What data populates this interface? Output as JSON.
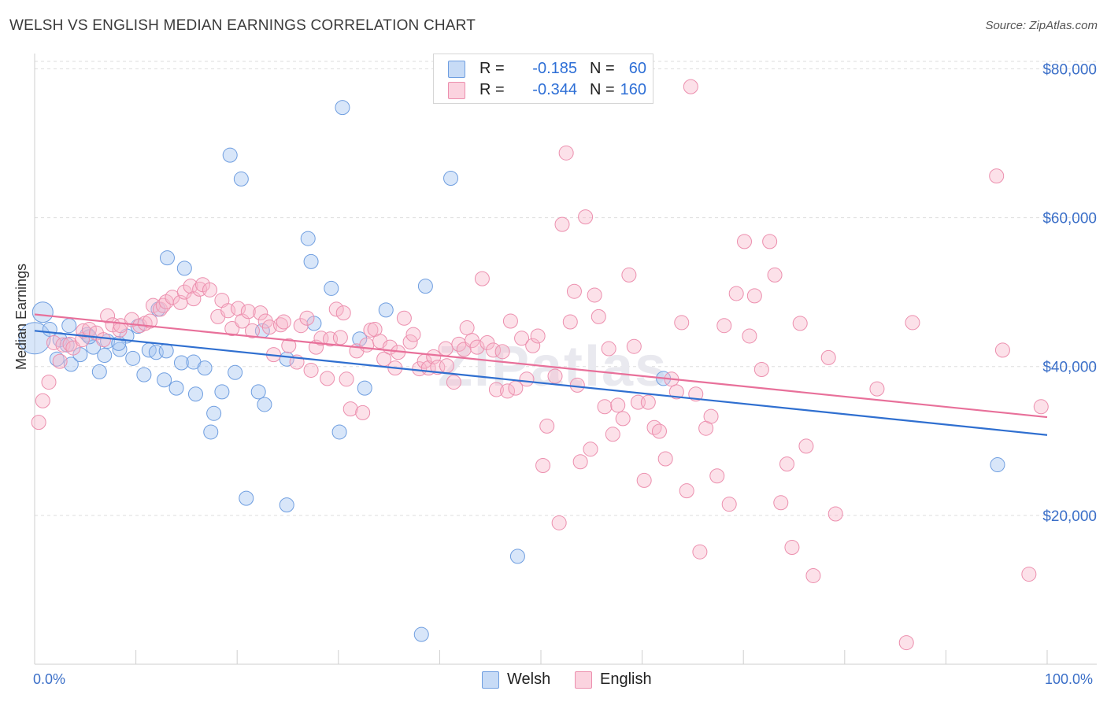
{
  "header": {
    "title": "WELSH VS ENGLISH MEDIAN EARNINGS CORRELATION CHART",
    "source": "Source: ZipAtlas.com"
  },
  "watermark": "ZIPatlas",
  "legend_top": {
    "rows": [
      {
        "r_label": "R =",
        "r_value": "-0.185",
        "n_label": "N =",
        "n_value": "60",
        "color": "#a9c8f2"
      },
      {
        "r_label": "R =",
        "r_value": "-0.344",
        "n_label": "N =",
        "n_value": "160",
        "color": "#f7b8cb"
      }
    ]
  },
  "legend_bottom": {
    "items": [
      {
        "label": "Welsh",
        "color": "#a9c8f2"
      },
      {
        "label": "English",
        "color": "#f7b8cb"
      }
    ]
  },
  "chart_data": {
    "type": "scatter",
    "title": "WELSH VS ENGLISH MEDIAN EARNINGS CORRELATION CHART",
    "xlabel": "",
    "ylabel": "Median Earnings",
    "x_tick_labels": [
      "0.0%",
      "100.0%"
    ],
    "y_tick_labels": [
      "$20,000",
      "$40,000",
      "$60,000",
      "$80,000"
    ],
    "y_ticks": [
      20000,
      40000,
      60000,
      80000
    ],
    "xlim": [
      0,
      100
    ],
    "ylim": [
      0,
      81000
    ],
    "grid": true,
    "legend_position": "top-center",
    "colors": {
      "welsh_fill": "#a9c8f2",
      "welsh_line": "#2f6fd0",
      "english_fill": "#f7b8cb",
      "english_line": "#e8709a",
      "axis_text": "#3b6fc8"
    },
    "trendlines": [
      {
        "series": "Welsh",
        "x": [
          0,
          100
        ],
        "y": [
          44800,
          30800
        ]
      },
      {
        "series": "English",
        "x": [
          0,
          100
        ],
        "y": [
          47000,
          33200
        ]
      }
    ],
    "series": [
      {
        "name": "Welsh",
        "points": [
          [
            0.0,
            43800
          ],
          [
            0.8,
            47300
          ],
          [
            1.5,
            45000
          ],
          [
            2.2,
            41000
          ],
          [
            2.5,
            43600
          ],
          [
            3.2,
            42900
          ],
          [
            3.4,
            45500
          ],
          [
            3.6,
            40300
          ],
          [
            4.5,
            41600
          ],
          [
            5.2,
            44300
          ],
          [
            5.8,
            42600
          ],
          [
            6.4,
            39300
          ],
          [
            6.9,
            41500
          ],
          [
            7.2,
            43400
          ],
          [
            8.4,
            42300
          ],
          [
            9.1,
            44100
          ],
          [
            9.7,
            41100
          ],
          [
            10.2,
            45400
          ],
          [
            10.8,
            38900
          ],
          [
            11.3,
            42200
          ],
          [
            12.0,
            41900
          ],
          [
            12.8,
            38200
          ],
          [
            13.1,
            54600
          ],
          [
            14.0,
            37100
          ],
          [
            14.5,
            40500
          ],
          [
            14.8,
            53200
          ],
          [
            15.7,
            40600
          ],
          [
            15.9,
            36300
          ],
          [
            16.8,
            39800
          ],
          [
            17.4,
            31200
          ],
          [
            17.7,
            33700
          ],
          [
            18.5,
            36600
          ],
          [
            19.3,
            68400
          ],
          [
            19.8,
            39200
          ],
          [
            20.4,
            65200
          ],
          [
            20.9,
            22300
          ],
          [
            22.1,
            36600
          ],
          [
            22.7,
            34900
          ],
          [
            24.9,
            41000
          ],
          [
            24.9,
            21400
          ],
          [
            27.0,
            57200
          ],
          [
            27.3,
            54100
          ],
          [
            27.6,
            45800
          ],
          [
            29.3,
            50500
          ],
          [
            30.1,
            31200
          ],
          [
            30.4,
            74800
          ],
          [
            32.1,
            43700
          ],
          [
            32.6,
            37100
          ],
          [
            34.7,
            47600
          ],
          [
            38.2,
            4000
          ],
          [
            38.6,
            50800
          ],
          [
            41.1,
            65300
          ],
          [
            47.7,
            14500
          ],
          [
            62.1,
            38400
          ],
          [
            95.1,
            26800
          ],
          [
            8.3,
            43100
          ],
          [
            13.0,
            42100
          ],
          [
            12.2,
            47700
          ],
          [
            5.4,
            44000
          ],
          [
            22.5,
            44800
          ]
        ]
      },
      {
        "name": "English",
        "points": [
          [
            0.4,
            32500
          ],
          [
            0.8,
            35400
          ],
          [
            1.4,
            37900
          ],
          [
            1.9,
            43200
          ],
          [
            2.5,
            40700
          ],
          [
            2.8,
            42900
          ],
          [
            3.5,
            43000
          ],
          [
            3.8,
            42500
          ],
          [
            4.7,
            43600
          ],
          [
            4.8,
            44800
          ],
          [
            5.4,
            45000
          ],
          [
            6.1,
            44500
          ],
          [
            6.8,
            43600
          ],
          [
            7.2,
            46800
          ],
          [
            7.7,
            45600
          ],
          [
            8.4,
            44900
          ],
          [
            8.5,
            45500
          ],
          [
            9.6,
            46300
          ],
          [
            10.4,
            45500
          ],
          [
            10.9,
            45800
          ],
          [
            11.4,
            46100
          ],
          [
            11.7,
            48200
          ],
          [
            12.4,
            47700
          ],
          [
            12.7,
            48200
          ],
          [
            13.0,
            48700
          ],
          [
            13.6,
            49300
          ],
          [
            14.4,
            48600
          ],
          [
            14.8,
            50000
          ],
          [
            15.4,
            50800
          ],
          [
            15.7,
            49100
          ],
          [
            16.3,
            50400
          ],
          [
            16.6,
            51000
          ],
          [
            17.3,
            50300
          ],
          [
            18.1,
            46700
          ],
          [
            18.5,
            48900
          ],
          [
            19.1,
            47500
          ],
          [
            19.5,
            45100
          ],
          [
            20.1,
            47800
          ],
          [
            20.5,
            46100
          ],
          [
            21.1,
            47400
          ],
          [
            21.5,
            44800
          ],
          [
            22.3,
            47200
          ],
          [
            22.8,
            46100
          ],
          [
            23.2,
            45300
          ],
          [
            23.6,
            41600
          ],
          [
            24.3,
            45600
          ],
          [
            24.6,
            46000
          ],
          [
            25.1,
            42800
          ],
          [
            25.9,
            40600
          ],
          [
            26.3,
            45500
          ],
          [
            26.9,
            46500
          ],
          [
            27.3,
            39500
          ],
          [
            27.8,
            42600
          ],
          [
            28.3,
            43800
          ],
          [
            28.9,
            38400
          ],
          [
            29.2,
            43700
          ],
          [
            29.8,
            47700
          ],
          [
            30.2,
            43900
          ],
          [
            30.8,
            38300
          ],
          [
            31.2,
            34300
          ],
          [
            31.8,
            42100
          ],
          [
            32.4,
            33800
          ],
          [
            32.8,
            42900
          ],
          [
            33.2,
            44900
          ],
          [
            33.6,
            45000
          ],
          [
            34.1,
            43400
          ],
          [
            34.5,
            41000
          ],
          [
            35.1,
            42600
          ],
          [
            35.6,
            39800
          ],
          [
            35.9,
            41900
          ],
          [
            36.5,
            46500
          ],
          [
            37.1,
            43300
          ],
          [
            37.4,
            44300
          ],
          [
            38.0,
            39700
          ],
          [
            38.5,
            40700
          ],
          [
            38.9,
            39800
          ],
          [
            39.4,
            41300
          ],
          [
            39.8,
            39900
          ],
          [
            40.6,
            42400
          ],
          [
            41.4,
            37900
          ],
          [
            41.9,
            43000
          ],
          [
            42.4,
            42300
          ],
          [
            42.7,
            45200
          ],
          [
            43.2,
            43500
          ],
          [
            43.7,
            42600
          ],
          [
            44.2,
            51800
          ],
          [
            44.7,
            43200
          ],
          [
            45.3,
            42200
          ],
          [
            45.6,
            36900
          ],
          [
            46.2,
            42000
          ],
          [
            46.7,
            36700
          ],
          [
            47.0,
            46100
          ],
          [
            47.5,
            37100
          ],
          [
            48.1,
            43800
          ],
          [
            48.6,
            38300
          ],
          [
            49.2,
            42800
          ],
          [
            49.7,
            44100
          ],
          [
            50.2,
            26700
          ],
          [
            50.6,
            32000
          ],
          [
            51.4,
            38700
          ],
          [
            51.8,
            19000
          ],
          [
            52.1,
            59100
          ],
          [
            52.5,
            68700
          ],
          [
            52.9,
            46000
          ],
          [
            53.3,
            50100
          ],
          [
            53.6,
            37500
          ],
          [
            53.9,
            27200
          ],
          [
            54.4,
            60100
          ],
          [
            54.9,
            28900
          ],
          [
            55.3,
            49600
          ],
          [
            55.7,
            46700
          ],
          [
            56.3,
            34600
          ],
          [
            56.7,
            42400
          ],
          [
            57.1,
            30900
          ],
          [
            57.6,
            34800
          ],
          [
            58.1,
            33000
          ],
          [
            58.7,
            52300
          ],
          [
            59.2,
            42700
          ],
          [
            59.6,
            35200
          ],
          [
            60.2,
            24700
          ],
          [
            60.6,
            35200
          ],
          [
            61.2,
            31800
          ],
          [
            61.7,
            31300
          ],
          [
            62.3,
            27600
          ],
          [
            62.9,
            38300
          ],
          [
            63.4,
            36600
          ],
          [
            63.9,
            45900
          ],
          [
            64.4,
            23300
          ],
          [
            64.8,
            77600
          ],
          [
            65.3,
            36300
          ],
          [
            65.7,
            15100
          ],
          [
            66.3,
            31700
          ],
          [
            66.8,
            33300
          ],
          [
            67.4,
            25300
          ],
          [
            68.1,
            45500
          ],
          [
            68.6,
            21500
          ],
          [
            69.3,
            49800
          ],
          [
            70.1,
            56800
          ],
          [
            70.6,
            44100
          ],
          [
            71.1,
            49500
          ],
          [
            71.8,
            39600
          ],
          [
            72.6,
            56800
          ],
          [
            73.1,
            52300
          ],
          [
            73.7,
            21700
          ],
          [
            74.3,
            26900
          ],
          [
            74.8,
            15700
          ],
          [
            75.6,
            45800
          ],
          [
            76.2,
            29300
          ],
          [
            76.9,
            11900
          ],
          [
            78.4,
            41200
          ],
          [
            79.1,
            20200
          ],
          [
            83.2,
            37000
          ],
          [
            86.1,
            2900
          ],
          [
            86.7,
            45900
          ],
          [
            95.0,
            65600
          ],
          [
            95.6,
            42200
          ],
          [
            98.2,
            12100
          ],
          [
            99.4,
            34600
          ],
          [
            30.5,
            47200
          ],
          [
            40.7,
            40100
          ]
        ]
      }
    ]
  }
}
